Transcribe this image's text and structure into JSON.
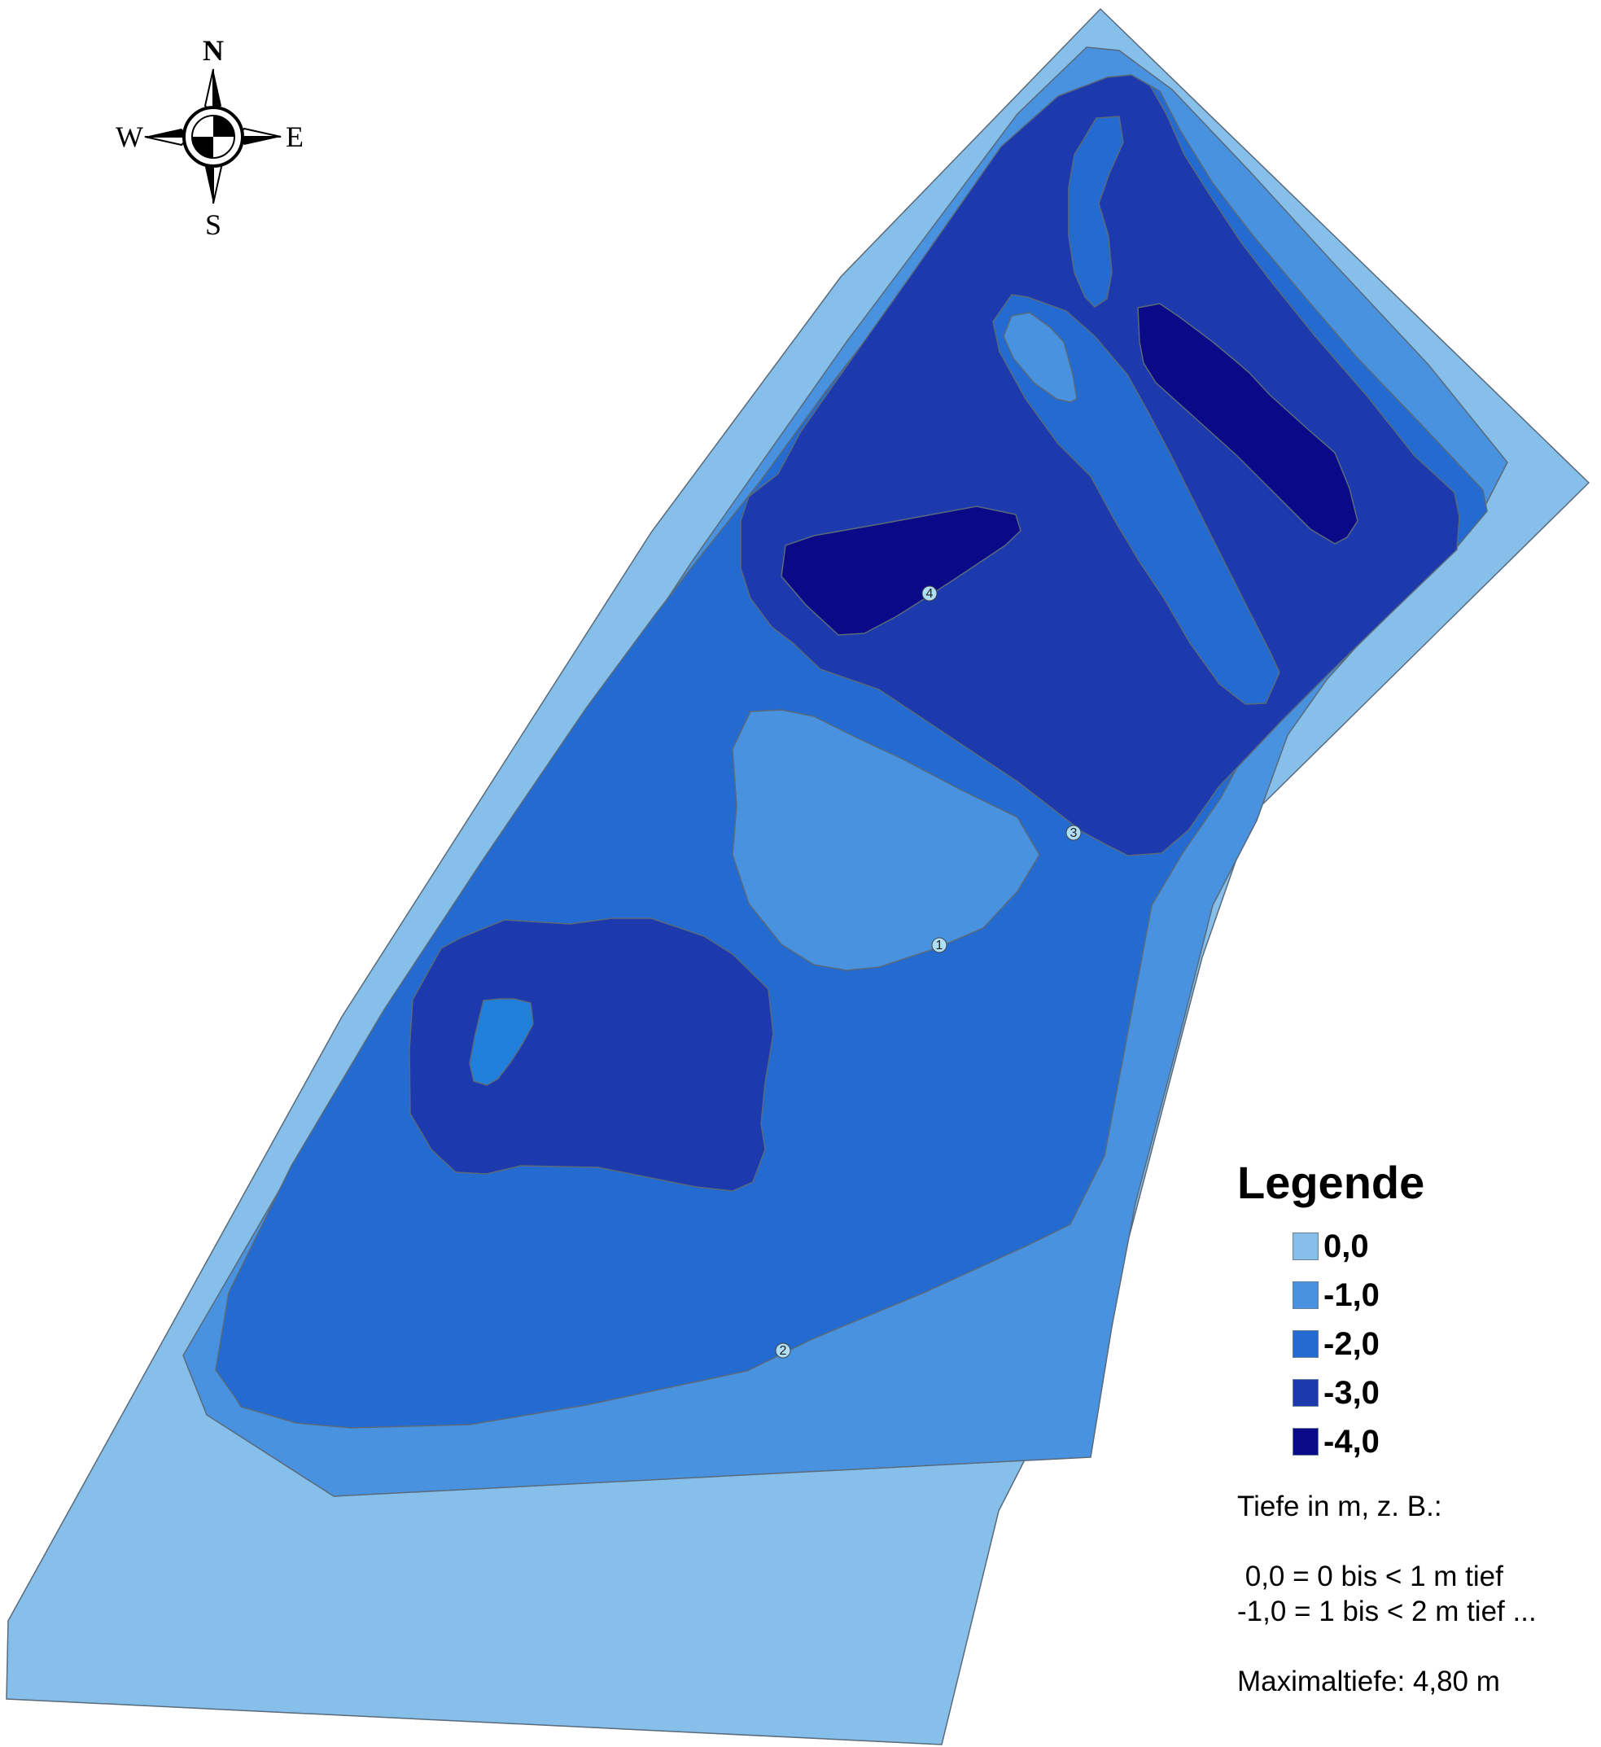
{
  "compass": {
    "n": "N",
    "s": "S",
    "w": "W",
    "e": "E"
  },
  "depth_colors": {
    "d0": "#85bfea",
    "d1": "#4892e0",
    "d2": "#236bd0",
    "d3": "#1c3aad",
    "d4": "#0a0a88",
    "spot": "#2080dc"
  },
  "markers": [
    {
      "id": "1",
      "label": "1"
    },
    {
      "id": "2",
      "label": "2"
    },
    {
      "id": "3",
      "label": "3"
    },
    {
      "id": "4",
      "label": "4"
    }
  ],
  "legend": {
    "title": "Legende",
    "items": [
      {
        "label": "0,0",
        "color": "#85bfea"
      },
      {
        "label": "-1,0",
        "color": "#4892e0"
      },
      {
        "label": "-2,0",
        "color": "#236bd0"
      },
      {
        "label": "-3,0",
        "color": "#1c3aad"
      },
      {
        "label": "-4,0",
        "color": "#0a0a88"
      }
    ],
    "note_intro": "Tiefe in m, z. B.:",
    "note_example_1": " 0,0 = 0 bis < 1 m tief",
    "note_example_2": "-1,0 = 1 bis < 2 m tief ...",
    "note_max": "Maximaltiefe: 4,80 m"
  }
}
